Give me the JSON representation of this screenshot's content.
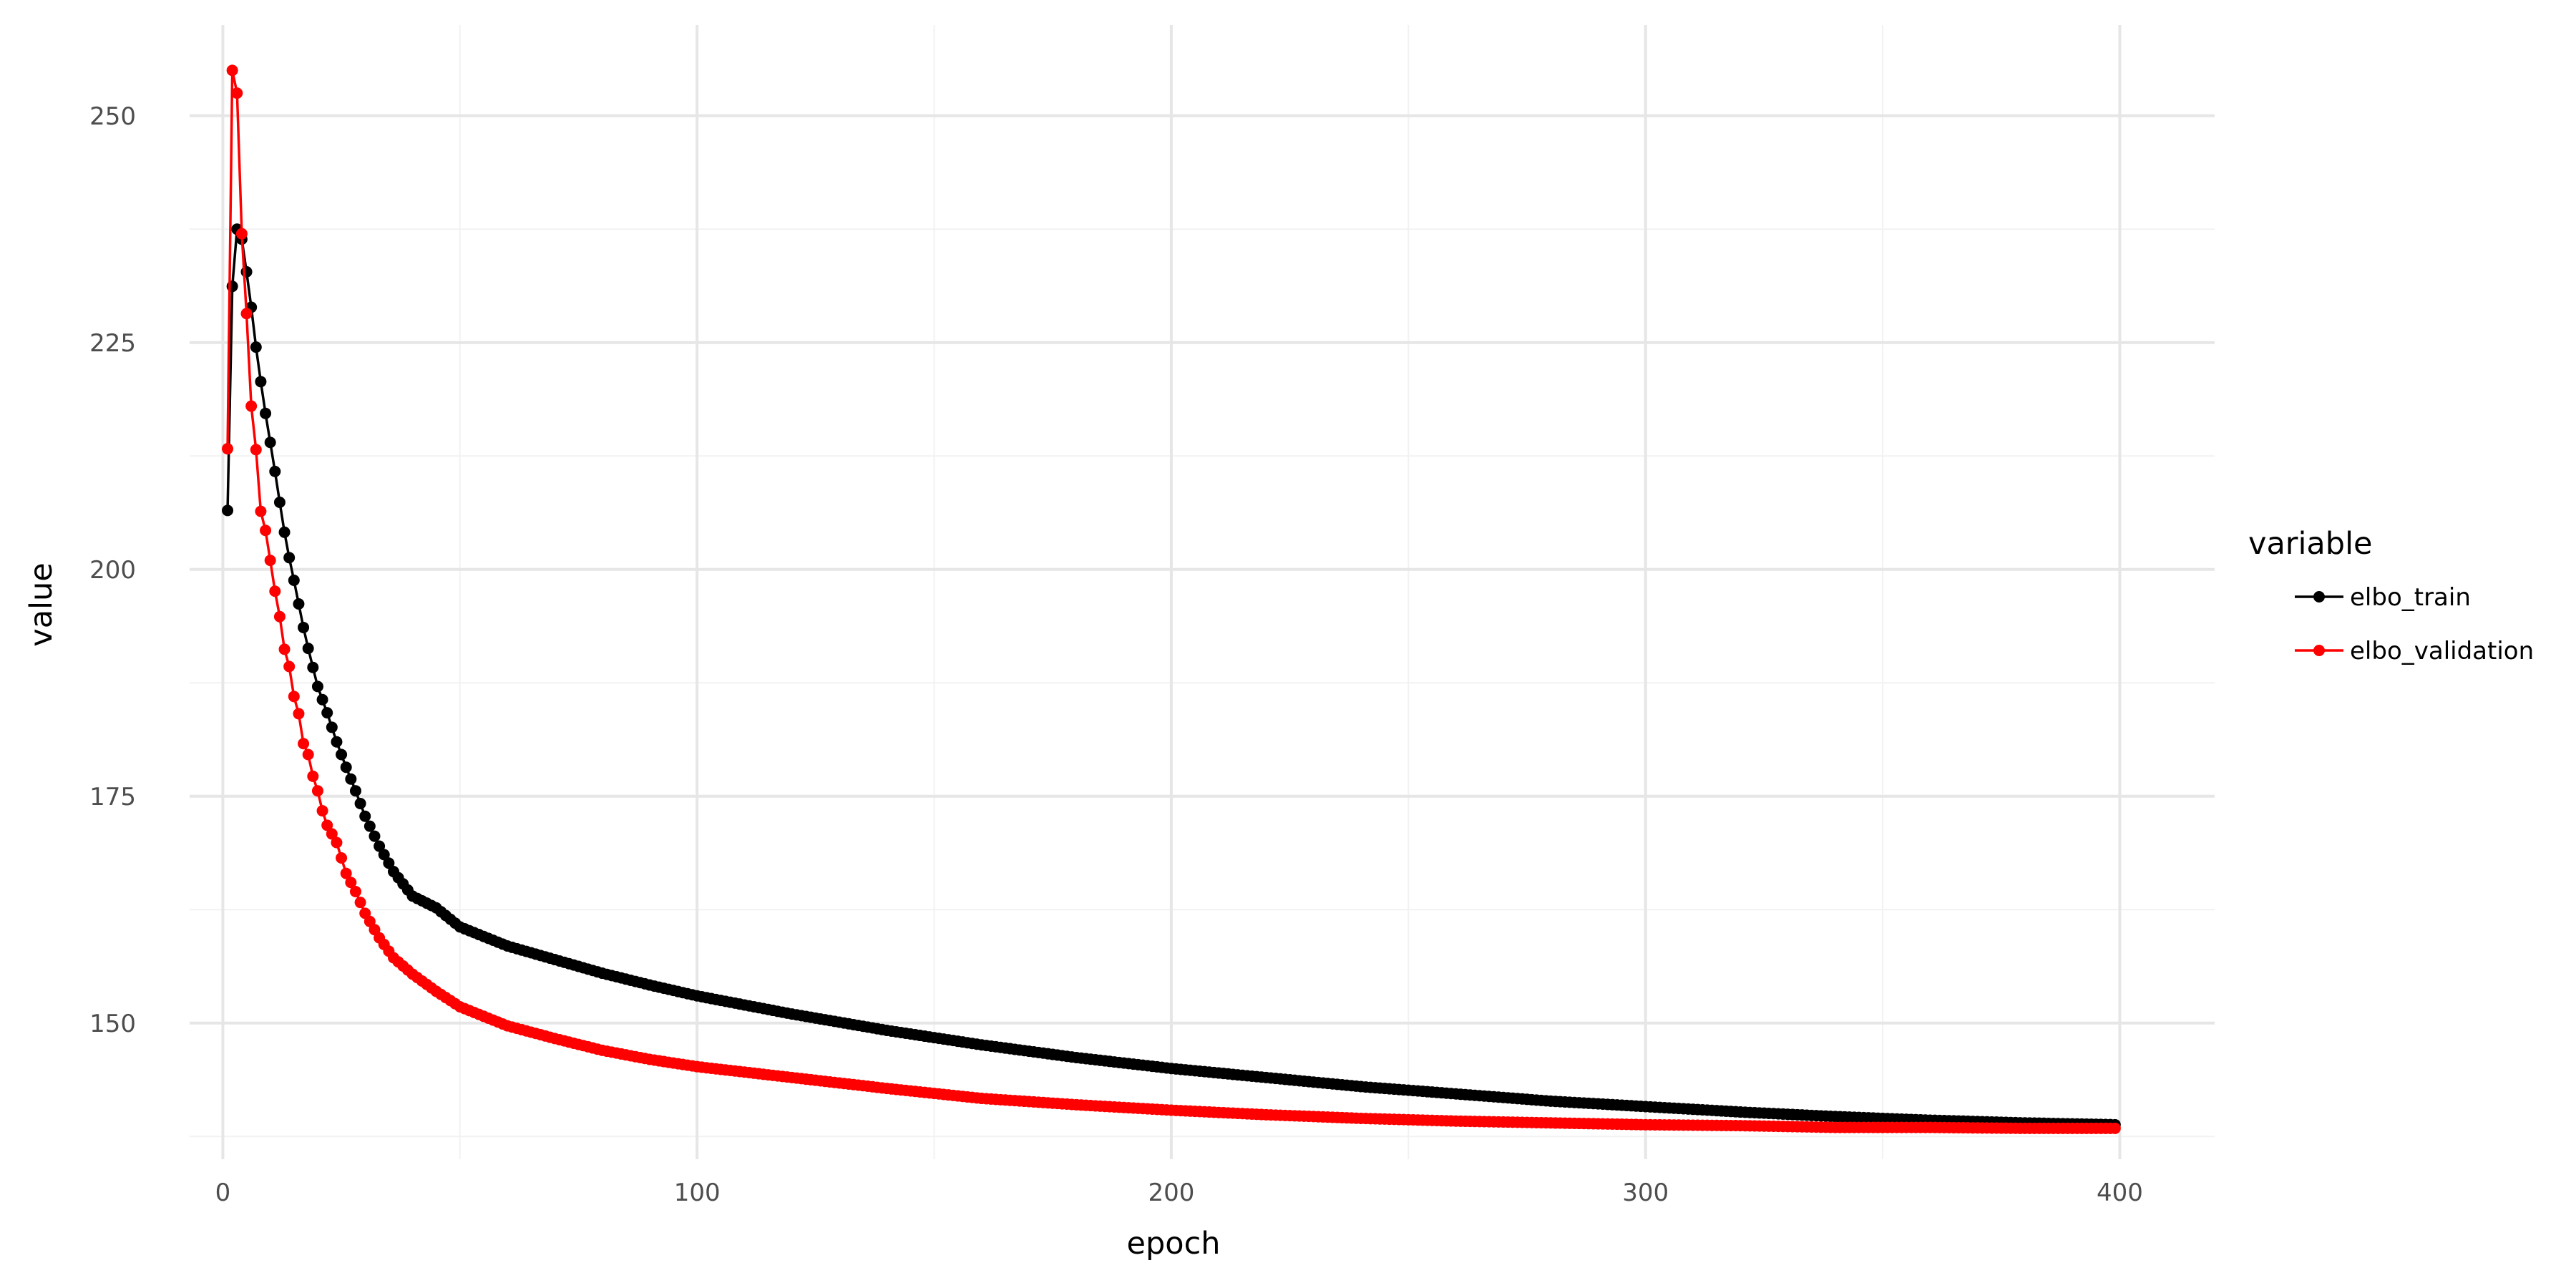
{
  "chart_data": {
    "type": "line",
    "title": "",
    "xlabel": "epoch",
    "ylabel": "value",
    "xlim": [
      -7,
      420
    ],
    "ylim": [
      135,
      260
    ],
    "x_ticks": [
      0,
      100,
      200,
      300,
      400
    ],
    "y_ticks": [
      150,
      175,
      200,
      225,
      250
    ],
    "x_tick_labels": [
      "0",
      "100",
      "200",
      "300",
      "400"
    ],
    "y_tick_labels": [
      "150",
      "175",
      "200",
      "225",
      "250"
    ],
    "grid": true,
    "markers": true,
    "legend": {
      "title": "variable",
      "position": "right"
    },
    "series": [
      {
        "name": "elbo_train",
        "color": "#000000",
        "points": [
          [
            1,
            206.5
          ],
          [
            2,
            231.2
          ],
          [
            3,
            237.5
          ],
          [
            4,
            236.4
          ],
          [
            5,
            232.8
          ],
          [
            6,
            228.9
          ],
          [
            7,
            224.5
          ],
          [
            8,
            220.7
          ],
          [
            9,
            217.2
          ],
          [
            10,
            214.0
          ],
          [
            11,
            210.8
          ],
          [
            12,
            207.4
          ],
          [
            13,
            204.1
          ],
          [
            14,
            201.3
          ],
          [
            15,
            198.8
          ],
          [
            16,
            196.2
          ],
          [
            17,
            193.6
          ],
          [
            18,
            191.3
          ],
          [
            19,
            189.2
          ],
          [
            20,
            187.1
          ],
          [
            22,
            184.2
          ],
          [
            24,
            181.0
          ],
          [
            26,
            178.2
          ],
          [
            28,
            175.6
          ],
          [
            30,
            172.8
          ],
          [
            33,
            169.5
          ],
          [
            36,
            166.7
          ],
          [
            40,
            164.0
          ],
          [
            45,
            162.7
          ],
          [
            50,
            160.6
          ],
          [
            60,
            158.5
          ],
          [
            70,
            157.0
          ],
          [
            80,
            155.5
          ],
          [
            90,
            154.2
          ],
          [
            100,
            153.0
          ],
          [
            120,
            151.0
          ],
          [
            140,
            149.2
          ],
          [
            160,
            147.6
          ],
          [
            180,
            146.2
          ],
          [
            200,
            145.0
          ],
          [
            220,
            144.0
          ],
          [
            240,
            143.0
          ],
          [
            260,
            142.2
          ],
          [
            280,
            141.4
          ],
          [
            300,
            140.8
          ],
          [
            320,
            140.2
          ],
          [
            340,
            139.7
          ],
          [
            360,
            139.3
          ],
          [
            380,
            139.0
          ],
          [
            399,
            138.8
          ]
        ]
      },
      {
        "name": "elbo_validation",
        "color": "#ff0000",
        "points": [
          [
            1,
            213.3
          ],
          [
            2,
            255.0
          ],
          [
            3,
            252.5
          ],
          [
            4,
            237.0
          ],
          [
            5,
            228.2
          ],
          [
            6,
            218.0
          ],
          [
            7,
            213.2
          ],
          [
            8,
            206.4
          ],
          [
            9,
            204.3
          ],
          [
            10,
            201.0
          ],
          [
            11,
            197.6
          ],
          [
            12,
            194.8
          ],
          [
            13,
            191.2
          ],
          [
            14,
            189.3
          ],
          [
            15,
            186.0
          ],
          [
            16,
            184.1
          ],
          [
            17,
            180.8
          ],
          [
            18,
            179.6
          ],
          [
            19,
            177.2
          ],
          [
            20,
            175.6
          ],
          [
            21,
            173.4
          ],
          [
            22,
            171.8
          ],
          [
            24,
            169.9
          ],
          [
            26,
            166.5
          ],
          [
            28,
            164.5
          ],
          [
            30,
            162.1
          ],
          [
            33,
            159.4
          ],
          [
            36,
            157.2
          ],
          [
            40,
            155.4
          ],
          [
            45,
            153.5
          ],
          [
            50,
            151.8
          ],
          [
            60,
            149.7
          ],
          [
            70,
            148.3
          ],
          [
            80,
            147.0
          ],
          [
            90,
            146.0
          ],
          [
            100,
            145.2
          ],
          [
            120,
            144.0
          ],
          [
            140,
            142.8
          ],
          [
            160,
            141.7
          ],
          [
            180,
            141.0
          ],
          [
            200,
            140.4
          ],
          [
            220,
            139.9
          ],
          [
            240,
            139.5
          ],
          [
            260,
            139.2
          ],
          [
            280,
            139.0
          ],
          [
            300,
            138.8
          ],
          [
            320,
            138.7
          ],
          [
            340,
            138.5
          ],
          [
            360,
            138.5
          ],
          [
            380,
            138.4
          ],
          [
            399,
            138.4
          ]
        ]
      }
    ]
  }
}
